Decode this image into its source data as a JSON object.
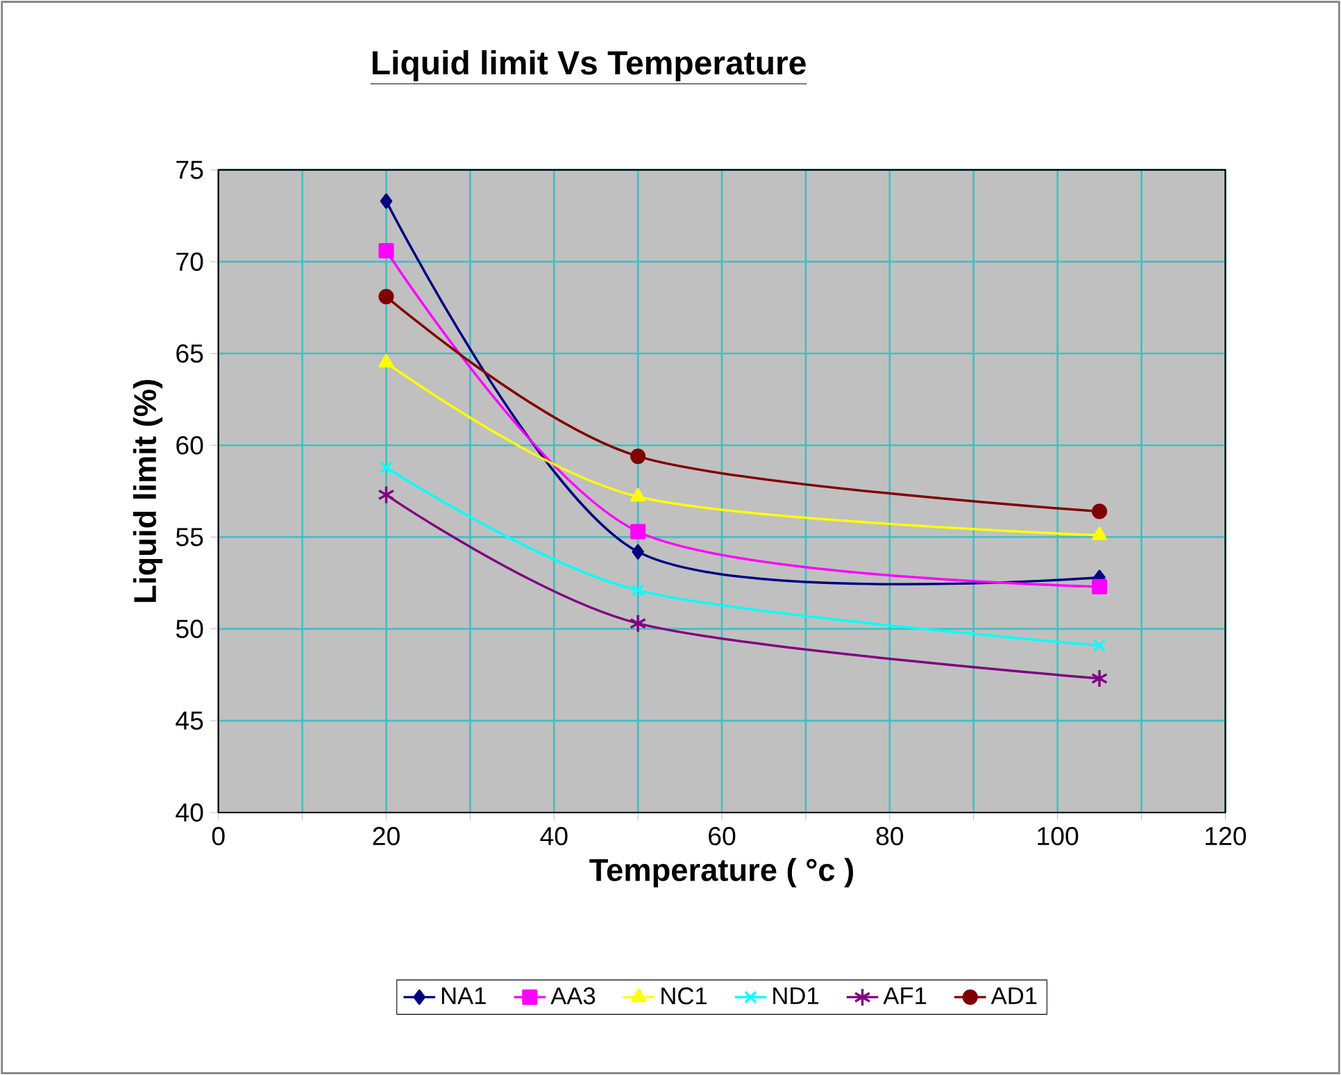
{
  "chart_data": {
    "type": "line",
    "title": "Liquid limit Vs Temperature",
    "xlabel": "Temperature ( °c )",
    "ylabel": "Liquid limit (%)",
    "x": [
      20,
      50,
      105
    ],
    "series": [
      {
        "name": "NA1",
        "color": "#000080",
        "marker": "diamond",
        "values": [
          73.3,
          54.2,
          52.8
        ]
      },
      {
        "name": "AA3",
        "color": "#ff00ff",
        "marker": "square",
        "values": [
          70.6,
          55.3,
          52.3
        ]
      },
      {
        "name": "NC1",
        "color": "#ffff00",
        "marker": "triangle",
        "values": [
          64.5,
          57.2,
          55.1
        ]
      },
      {
        "name": "ND1",
        "color": "#00ffff",
        "marker": "cross",
        "values": [
          58.8,
          52.1,
          49.1
        ]
      },
      {
        "name": "AF1",
        "color": "#800080",
        "marker": "cross",
        "values": [
          57.3,
          50.3,
          47.3
        ]
      },
      {
        "name": "AD1",
        "color": "#800000",
        "marker": "circle",
        "values": [
          68.1,
          59.4,
          56.4
        ]
      }
    ],
    "xlim": [
      0,
      120
    ],
    "ylim": [
      40,
      75
    ],
    "xticks": [
      0,
      {
        "value": 10,
        "label": null
      },
      20,
      {
        "value": 30,
        "label": null
      },
      40,
      {
        "value": 50,
        "label": null
      },
      60,
      {
        "value": 70,
        "label": null
      },
      80,
      {
        "value": 90,
        "label": null
      },
      100,
      {
        "value": 110,
        "label": null
      },
      120
    ],
    "yticks": [
      40,
      45,
      50,
      55,
      60,
      65,
      70,
      75
    ],
    "grid": true,
    "legend": "bottom",
    "line_style": "solid"
  }
}
